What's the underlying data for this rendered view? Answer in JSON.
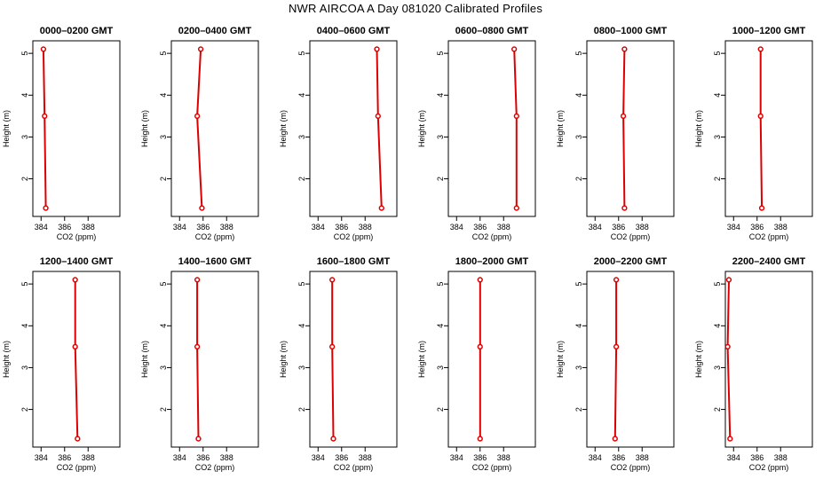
{
  "title": "NWR AIRCOA A  Day 081020  Calibrated Profiles",
  "colors": {
    "profile": "#dd0000",
    "axis": "#000000"
  },
  "chart_data": [
    {
      "type": "line",
      "title": "0000–0200 GMT",
      "xlabel": "CO2 (ppm)",
      "ylabel": "Height (m)",
      "xlim": [
        383.3,
        390.7
      ],
      "ylim": [
        1.1,
        5.3
      ],
      "xticks": [
        384,
        386,
        388
      ],
      "yticks": [
        2,
        3,
        4,
        5
      ],
      "series": [
        {
          "x": [
            384.4,
            384.3,
            384.2
          ],
          "y": [
            1.3,
            3.5,
            5.1
          ]
        }
      ]
    },
    {
      "type": "line",
      "title": "0200–0400 GMT",
      "xlabel": "CO2 (ppm)",
      "ylabel": "Height (m)",
      "xlim": [
        383.3,
        390.7
      ],
      "ylim": [
        1.1,
        5.3
      ],
      "xticks": [
        384,
        386,
        388
      ],
      "yticks": [
        2,
        3,
        4,
        5
      ],
      "series": [
        {
          "x": [
            385.9,
            385.5,
            385.8
          ],
          "y": [
            1.3,
            3.5,
            5.1
          ]
        }
      ]
    },
    {
      "type": "line",
      "title": "0400–0600 GMT",
      "xlabel": "CO2 (ppm)",
      "ylabel": "Height (m)",
      "xlim": [
        383.3,
        390.7
      ],
      "ylim": [
        1.1,
        5.3
      ],
      "xticks": [
        384,
        386,
        388
      ],
      "yticks": [
        2,
        3,
        4,
        5
      ],
      "series": [
        {
          "x": [
            389.4,
            389.1,
            389.0
          ],
          "y": [
            1.3,
            3.5,
            5.1
          ]
        }
      ]
    },
    {
      "type": "line",
      "title": "0600–0800 GMT",
      "xlabel": "CO2 (ppm)",
      "ylabel": "Height (m)",
      "xlim": [
        383.3,
        390.7
      ],
      "ylim": [
        1.1,
        5.3
      ],
      "xticks": [
        384,
        386,
        388
      ],
      "yticks": [
        2,
        3,
        4,
        5
      ],
      "series": [
        {
          "x": [
            389.1,
            389.1,
            388.9
          ],
          "y": [
            1.3,
            3.5,
            5.1
          ]
        }
      ]
    },
    {
      "type": "line",
      "title": "0800–1000 GMT",
      "xlabel": "CO2 (ppm)",
      "ylabel": "Height (m)",
      "xlim": [
        383.3,
        390.7
      ],
      "ylim": [
        1.1,
        5.3
      ],
      "xticks": [
        384,
        386,
        388
      ],
      "yticks": [
        2,
        3,
        4,
        5
      ],
      "series": [
        {
          "x": [
            386.5,
            386.4,
            386.5
          ],
          "y": [
            1.3,
            3.5,
            5.1
          ]
        }
      ]
    },
    {
      "type": "line",
      "title": "1000–1200 GMT",
      "xlabel": "CO2 (ppm)",
      "ylabel": "Height (m)",
      "xlim": [
        383.3,
        390.7
      ],
      "ylim": [
        1.1,
        5.3
      ],
      "xticks": [
        384,
        386,
        388
      ],
      "yticks": [
        2,
        3,
        4,
        5
      ],
      "series": [
        {
          "x": [
            386.4,
            386.3,
            386.3
          ],
          "y": [
            1.3,
            3.5,
            5.1
          ]
        }
      ]
    },
    {
      "type": "line",
      "title": "1200–1400 GMT",
      "xlabel": "CO2 (ppm)",
      "ylabel": "Height (m)",
      "xlim": [
        383.3,
        390.7
      ],
      "ylim": [
        1.1,
        5.3
      ],
      "xticks": [
        384,
        386,
        388
      ],
      "yticks": [
        2,
        3,
        4,
        5
      ],
      "series": [
        {
          "x": [
            387.1,
            386.9,
            386.9
          ],
          "y": [
            1.3,
            3.5,
            5.1
          ]
        }
      ]
    },
    {
      "type": "line",
      "title": "1400–1600 GMT",
      "xlabel": "CO2 (ppm)",
      "ylabel": "Height (m)",
      "xlim": [
        383.3,
        390.7
      ],
      "ylim": [
        1.1,
        5.3
      ],
      "xticks": [
        384,
        386,
        388
      ],
      "yticks": [
        2,
        3,
        4,
        5
      ],
      "series": [
        {
          "x": [
            385.6,
            385.5,
            385.5
          ],
          "y": [
            1.3,
            3.5,
            5.1
          ]
        }
      ]
    },
    {
      "type": "line",
      "title": "1600–1800 GMT",
      "xlabel": "CO2 (ppm)",
      "ylabel": "Height (m)",
      "xlim": [
        383.3,
        390.7
      ],
      "ylim": [
        1.1,
        5.3
      ],
      "xticks": [
        384,
        386,
        388
      ],
      "yticks": [
        2,
        3,
        4,
        5
      ],
      "series": [
        {
          "x": [
            385.3,
            385.2,
            385.2
          ],
          "y": [
            1.3,
            3.5,
            5.1
          ]
        }
      ]
    },
    {
      "type": "line",
      "title": "1800–2000 GMT",
      "xlabel": "CO2 (ppm)",
      "ylabel": "Height (m)",
      "xlim": [
        383.3,
        390.7
      ],
      "ylim": [
        1.1,
        5.3
      ],
      "xticks": [
        384,
        386,
        388
      ],
      "yticks": [
        2,
        3,
        4,
        5
      ],
      "series": [
        {
          "x": [
            386.0,
            386.0,
            386.0
          ],
          "y": [
            1.3,
            3.5,
            5.1
          ]
        }
      ]
    },
    {
      "type": "line",
      "title": "2000–2200 GMT",
      "xlabel": "CO2 (ppm)",
      "ylabel": "Height (m)",
      "xlim": [
        383.3,
        390.7
      ],
      "ylim": [
        1.1,
        5.3
      ],
      "xticks": [
        384,
        386,
        388
      ],
      "yticks": [
        2,
        3,
        4,
        5
      ],
      "series": [
        {
          "x": [
            385.7,
            385.8,
            385.8
          ],
          "y": [
            1.3,
            3.5,
            5.1
          ]
        }
      ]
    },
    {
      "type": "line",
      "title": "2200–2400 GMT",
      "xlabel": "CO2 (ppm)",
      "ylabel": "Height (m)",
      "xlim": [
        383.3,
        390.7
      ],
      "ylim": [
        1.1,
        5.3
      ],
      "xticks": [
        384,
        386,
        388
      ],
      "yticks": [
        2,
        3,
        4,
        5
      ],
      "series": [
        {
          "x": [
            383.7,
            383.5,
            383.6
          ],
          "y": [
            1.3,
            3.5,
            5.1
          ]
        }
      ]
    }
  ]
}
